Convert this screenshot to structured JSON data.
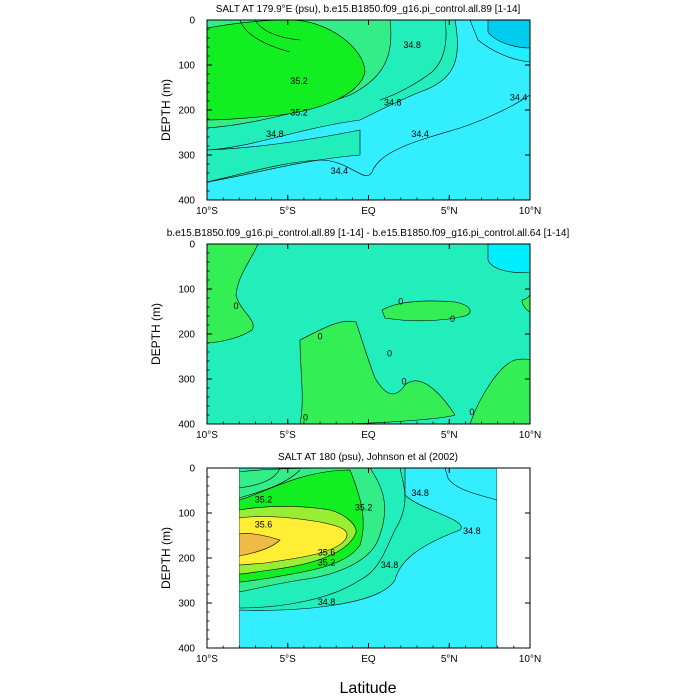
{
  "figure": {
    "xlabel": "Latitude"
  },
  "chart_data": [
    {
      "type": "contour",
      "title": "SALT AT 179.9°E (psu), b.e15.B1850.f09_g16.pi_control.all.89 [1-14]",
      "ylabel": "DEPTH (m)",
      "xlim": [
        -10,
        10
      ],
      "ylim": [
        400,
        0
      ],
      "x_ticks": [
        "10°S",
        "5°S",
        "EQ",
        "5°N",
        "10°N"
      ],
      "y_ticks": [
        "0",
        "100",
        "200",
        "300",
        "400"
      ],
      "colors": {
        "34.0": "#00ccee",
        "34.4": "#33eeff",
        "34.8": "#22eebb",
        "35.0": "#33ee88",
        "35.2": "#11ee22"
      },
      "contour_labels": [
        {
          "lat": 2.7,
          "depth": 55,
          "text": "34.8"
        },
        {
          "lat": -4.3,
          "depth": 135,
          "text": "35.2"
        },
        {
          "lat": -4.3,
          "depth": 205,
          "text": "35.2"
        },
        {
          "lat": -5.8,
          "depth": 253,
          "text": "34.8"
        },
        {
          "lat": 1.5,
          "depth": 183,
          "text": "34.8"
        },
        {
          "lat": 3.2,
          "depth": 253,
          "text": "34.4"
        },
        {
          "lat": -1.8,
          "depth": 335,
          "text": "34.4"
        },
        {
          "lat": 9.3,
          "depth": 172,
          "text": "34.4"
        }
      ]
    },
    {
      "type": "contour",
      "title": "b.e15.B1850.f09_g16.pi_control.all.89 [1-14] - b.e15.B1850.f09_g16.pi_control.all.64 [1-14]",
      "ylabel": "DEPTH (m)",
      "xlim": [
        -10,
        10
      ],
      "ylim": [
        400,
        0
      ],
      "x_ticks": [
        "10°S",
        "5°S",
        "EQ",
        "5°N",
        "10°N"
      ],
      "y_ticks": [
        "0",
        "100",
        "200",
        "300",
        "400"
      ],
      "colors": {
        "neg": "#00eeff",
        "zero": "#22eebb",
        "pos": "#33ee55"
      },
      "contour_labels": [
        {
          "lat": -8.2,
          "depth": 138,
          "text": "0"
        },
        {
          "lat": 2.0,
          "depth": 128,
          "text": "0"
        },
        {
          "lat": 5.2,
          "depth": 167,
          "text": "0"
        },
        {
          "lat": -3.0,
          "depth": 205,
          "text": "0"
        },
        {
          "lat": 1.3,
          "depth": 243,
          "text": "0"
        },
        {
          "lat": 2.2,
          "depth": 305,
          "text": "0"
        },
        {
          "lat": -3.9,
          "depth": 385,
          "text": "0"
        },
        {
          "lat": 6.4,
          "depth": 373,
          "text": "0"
        }
      ]
    },
    {
      "type": "contour",
      "title": "SALT AT 180 (psu), Johnson et al (2002)",
      "ylabel": "DEPTH (m)",
      "xlim": [
        -10,
        10
      ],
      "ylim": [
        400,
        0
      ],
      "x_ticks": [
        "10°S",
        "5°S",
        "EQ",
        "5°N",
        "10°N"
      ],
      "y_ticks": [
        "0",
        "100",
        "200",
        "300",
        "400"
      ],
      "data_lat_range": [
        -8,
        8
      ],
      "colors": {
        "34.4": "#33eeff",
        "34.8": "#22eebb",
        "35.0": "#33ee88",
        "35.2": "#11ee22",
        "35.4": "#99ee33",
        "35.6": "#ffee33",
        "35.8": "#eebb44"
      },
      "contour_labels": [
        {
          "lat": -6.5,
          "depth": 70,
          "text": "35.2"
        },
        {
          "lat": -6.5,
          "depth": 125,
          "text": "35.6"
        },
        {
          "lat": -2.6,
          "depth": 188,
          "text": "35.6"
        },
        {
          "lat": -2.6,
          "depth": 210,
          "text": "35.2"
        },
        {
          "lat": -2.6,
          "depth": 298,
          "text": "34.8"
        },
        {
          "lat": -0.3,
          "depth": 88,
          "text": "35.2"
        },
        {
          "lat": 3.2,
          "depth": 55,
          "text": "34.8"
        },
        {
          "lat": 6.4,
          "depth": 140,
          "text": "34.8"
        },
        {
          "lat": 1.3,
          "depth": 215,
          "text": "34.8"
        }
      ]
    }
  ]
}
